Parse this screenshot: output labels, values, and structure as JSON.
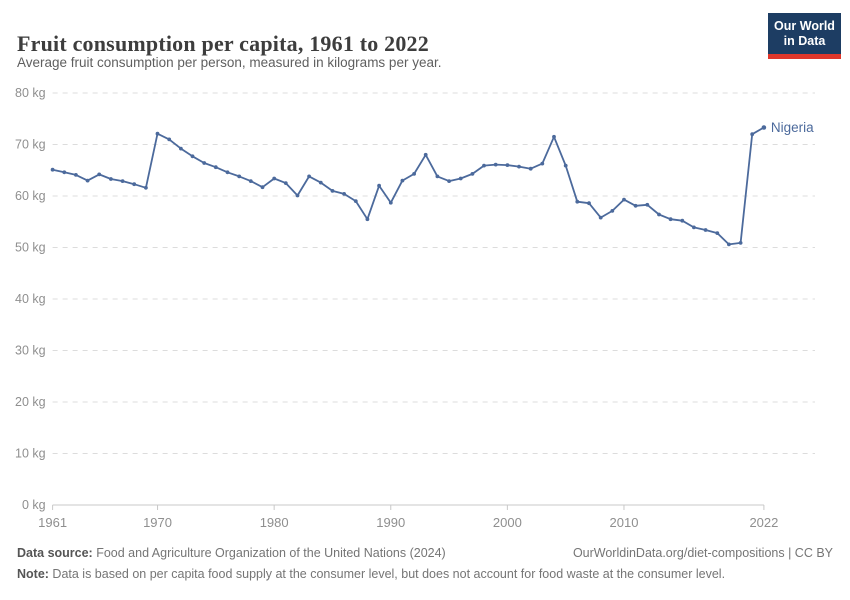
{
  "header": {
    "title": "Fruit consumption per capita, 1961 to 2022",
    "subtitle": "Average fruit consumption per person, measured in kilograms per year.",
    "logo": {
      "line1": "Our World",
      "line2": "in Data",
      "bg_color": "#1d3d63",
      "bar_color": "#e0372b"
    }
  },
  "chart_data": {
    "type": "line",
    "title": "Fruit consumption per capita, 1961 to 2022",
    "xlabel": "",
    "ylabel": "",
    "xlim": [
      1961,
      2022
    ],
    "ylim": [
      0,
      80
    ],
    "grid": "horizontal-dashed",
    "legend_position": "end-of-line-label",
    "x_ticks": [
      {
        "v": 1961,
        "label": "1961"
      },
      {
        "v": 1970,
        "label": "1970"
      },
      {
        "v": 1980,
        "label": "1980"
      },
      {
        "v": 1990,
        "label": "1990"
      },
      {
        "v": 2000,
        "label": "2000"
      },
      {
        "v": 2010,
        "label": "2010"
      },
      {
        "v": 2022,
        "label": "2022"
      }
    ],
    "y_ticks": [
      {
        "v": 0,
        "label": "0 kg"
      },
      {
        "v": 10,
        "label": "10 kg"
      },
      {
        "v": 20,
        "label": "20 kg"
      },
      {
        "v": 30,
        "label": "30 kg"
      },
      {
        "v": 40,
        "label": "40 kg"
      },
      {
        "v": 50,
        "label": "50 kg"
      },
      {
        "v": 60,
        "label": "60 kg"
      },
      {
        "v": 70,
        "label": "70 kg"
      },
      {
        "v": 80,
        "label": "80 kg"
      }
    ],
    "series": [
      {
        "name": "Nigeria",
        "color": "#4c6a9c",
        "x": [
          1961,
          1962,
          1963,
          1964,
          1965,
          1966,
          1967,
          1968,
          1969,
          1970,
          1971,
          1972,
          1973,
          1974,
          1975,
          1976,
          1977,
          1978,
          1979,
          1980,
          1981,
          1982,
          1983,
          1984,
          1985,
          1986,
          1987,
          1988,
          1989,
          1990,
          1991,
          1992,
          1993,
          1994,
          1995,
          1996,
          1997,
          1998,
          1999,
          2000,
          2001,
          2002,
          2003,
          2004,
          2005,
          2006,
          2007,
          2008,
          2009,
          2010,
          2011,
          2012,
          2013,
          2014,
          2015,
          2016,
          2017,
          2018,
          2019,
          2020,
          2021,
          2022
        ],
        "values": [
          65.1,
          64.6,
          64.1,
          63.0,
          64.2,
          63.3,
          62.9,
          62.3,
          61.6,
          72.1,
          71.0,
          69.2,
          67.7,
          66.4,
          65.6,
          64.6,
          63.8,
          62.9,
          61.7,
          63.4,
          62.5,
          60.1,
          63.8,
          62.6,
          61.0,
          60.4,
          59.0,
          55.5,
          62.0,
          58.7,
          63.0,
          64.3,
          68.0,
          63.8,
          62.9,
          63.4,
          64.3,
          65.9,
          66.1,
          66.0,
          65.7,
          65.3,
          66.3,
          71.5,
          65.9,
          58.9,
          58.6,
          55.8,
          57.1,
          59.3,
          58.1,
          58.3,
          56.4,
          55.5,
          55.2,
          53.9,
          53.4,
          52.8,
          50.6,
          50.9,
          72.0,
          73.3
        ]
      }
    ],
    "entity_label": "Nigeria",
    "colors": {
      "grid": "#dcdcdc",
      "axis": "#c8c8c8",
      "tick_label": "#8f8f8f"
    }
  },
  "footer": {
    "source_label": "Data source:",
    "source_text": " Food and Agriculture Organization of the United Nations (2024)",
    "link": "OurWorldinData.org/diet-compositions | CC BY",
    "note_label": "Note:",
    "note_text": " Data is based on per capita food supply at the consumer level, but does not account for food waste at the consumer level."
  }
}
